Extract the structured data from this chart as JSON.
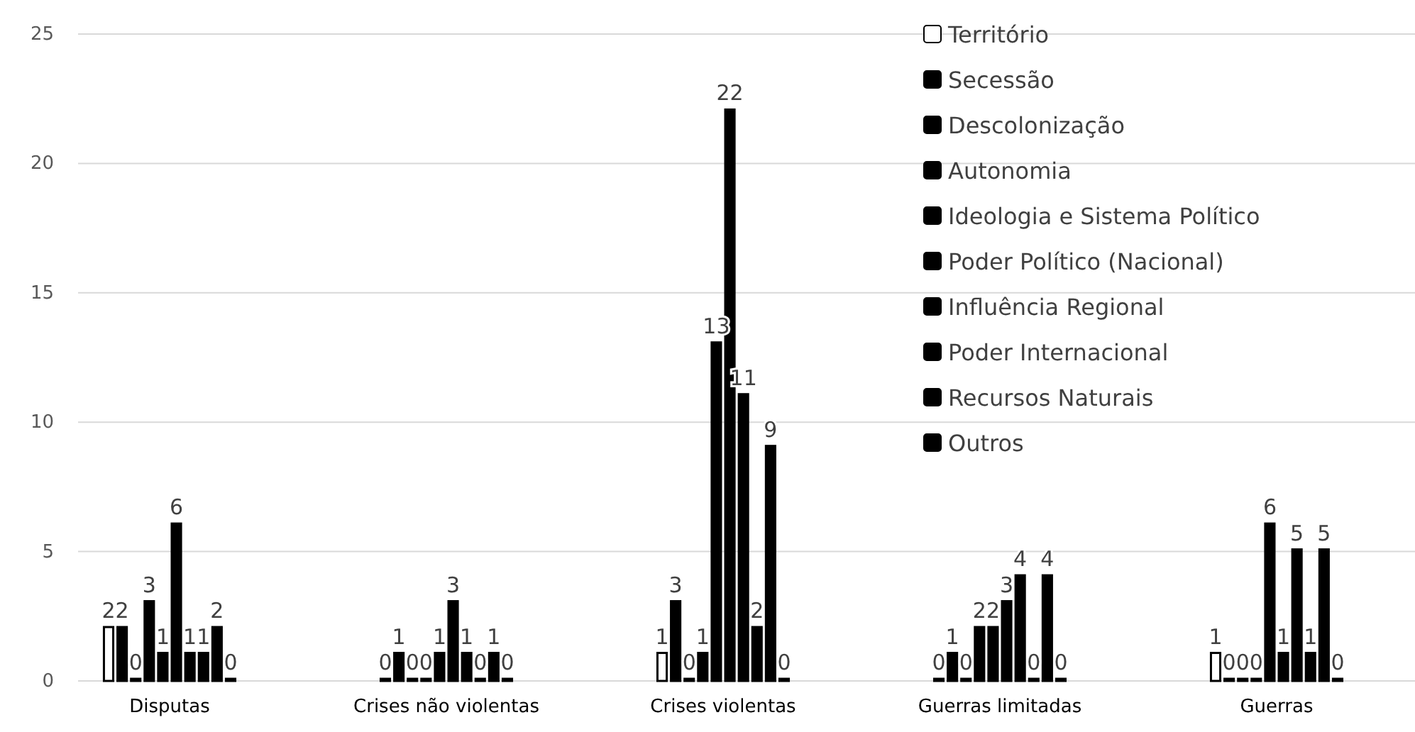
{
  "chart_data": {
    "type": "bar",
    "categories": [
      "Disputas",
      "Crises não violentas",
      "Crises violentas",
      "Guerras limitadas",
      "Guerras"
    ],
    "series": [
      {
        "name": "Território",
        "color": "#ffffff",
        "values": [
          2,
          0,
          1,
          0,
          1
        ]
      },
      {
        "name": "Secessão",
        "color": "#000000",
        "values": [
          2,
          1,
          3,
          1,
          0
        ]
      },
      {
        "name": "Descolonização",
        "color": "#000000",
        "values": [
          0,
          0,
          0,
          0,
          0
        ]
      },
      {
        "name": "Autonomia",
        "color": "#000000",
        "values": [
          3,
          0,
          1,
          2,
          0
        ]
      },
      {
        "name": "Ideologia e Sistema Político",
        "color": "#000000",
        "values": [
          1,
          1,
          13,
          2,
          6
        ]
      },
      {
        "name": "Poder Político (Nacional)",
        "color": "#000000",
        "values": [
          6,
          3,
          22,
          3,
          1
        ]
      },
      {
        "name": "Influência Regional",
        "color": "#000000",
        "values": [
          1,
          1,
          11,
          4,
          5
        ]
      },
      {
        "name": "Poder Internacional",
        "color": "#000000",
        "values": [
          1,
          0,
          2,
          0,
          1
        ]
      },
      {
        "name": "Recursos Naturais",
        "color": "#000000",
        "values": [
          2,
          1,
          9,
          4,
          5
        ]
      },
      {
        "name": "Outros",
        "color": "#000000",
        "values": [
          0,
          0,
          0,
          0,
          0
        ]
      }
    ],
    "ylim": [
      0,
      25
    ],
    "yticks": [
      0,
      5,
      10,
      15,
      20,
      25
    ],
    "grid": "y",
    "legend": "top right",
    "data_labels": true
  }
}
